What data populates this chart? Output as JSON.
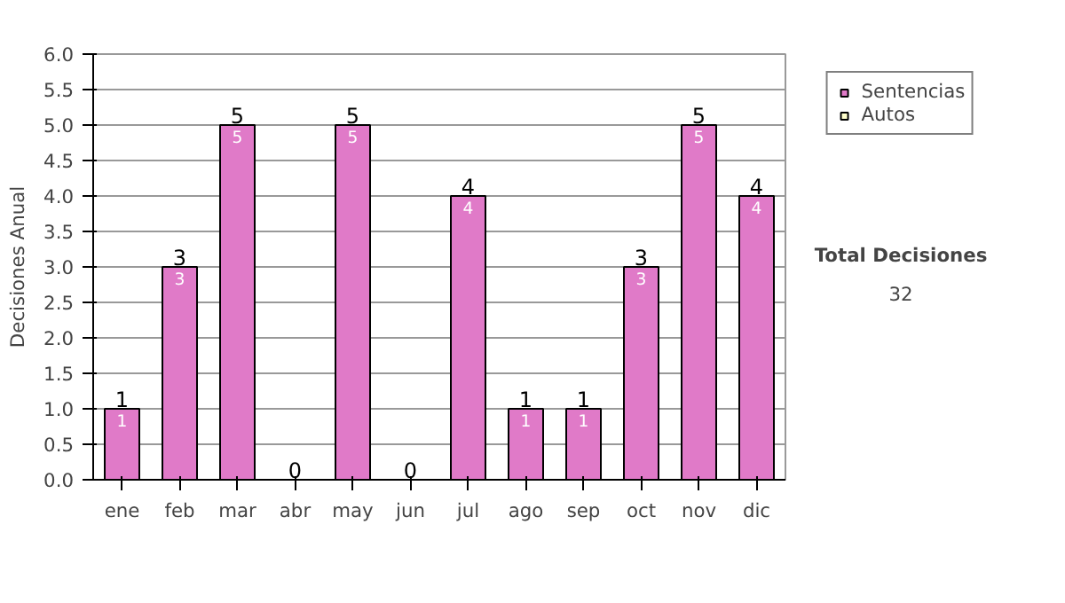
{
  "chart_data": {
    "type": "bar",
    "ylabel": "Decisiones Anual",
    "categories": [
      "ene",
      "feb",
      "mar",
      "abr",
      "may",
      "jun",
      "jul",
      "ago",
      "sep",
      "oct",
      "nov",
      "dic"
    ],
    "stacked": true,
    "series": [
      {
        "name": "Sentencias",
        "color": "#e07ac8",
        "values": [
          1,
          3,
          5,
          0,
          5,
          0,
          4,
          1,
          1,
          3,
          5,
          4
        ],
        "value_labels": [
          "1",
          "3",
          "5",
          null,
          "5",
          null,
          "4",
          "1",
          "1",
          "3",
          "5",
          "4"
        ]
      },
      {
        "name": "Autos",
        "color": "#ffffcc",
        "values": [
          0,
          0,
          0,
          0,
          0,
          0,
          0,
          0,
          0,
          0,
          0,
          0
        ]
      }
    ],
    "totals": [
      "1",
      "3",
      "5",
      "0",
      "5",
      "0",
      "4",
      "1",
      "1",
      "3",
      "5",
      "4"
    ],
    "ylim": [
      0,
      6
    ],
    "yticks": [
      {
        "value": 0,
        "label": "0.0"
      },
      {
        "value": 0.5,
        "label": "0.5"
      },
      {
        "value": 1,
        "label": "1.0"
      },
      {
        "value": 1.5,
        "label": "1.5"
      },
      {
        "value": 2,
        "label": "2.0"
      },
      {
        "value": 2.5,
        "label": "2.5"
      },
      {
        "value": 3,
        "label": "3.0"
      },
      {
        "value": 3.5,
        "label": "3.5"
      },
      {
        "value": 4,
        "label": "4.0"
      },
      {
        "value": 4.5,
        "label": "4.5"
      },
      {
        "value": 5,
        "label": "5.0"
      },
      {
        "value": 5.5,
        "label": "5.5"
      },
      {
        "value": 6,
        "label": "6.0"
      }
    ],
    "grid": "y",
    "legend": "right",
    "annotations": [
      "Total Decisiones",
      "32"
    ]
  }
}
